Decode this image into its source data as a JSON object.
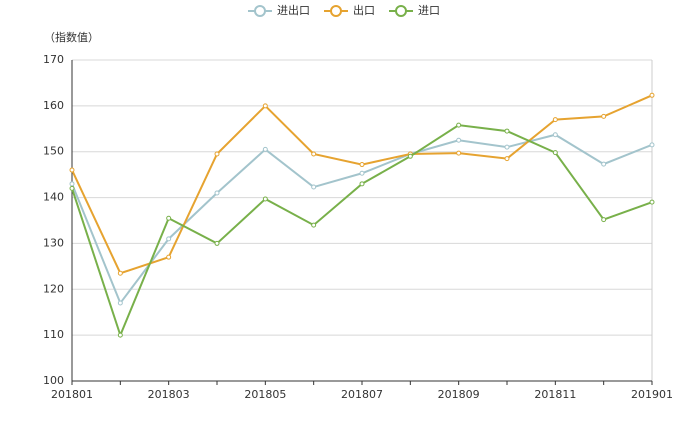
{
  "chart_data": {
    "type": "line",
    "y_axis_label": "（指数值）",
    "categories": [
      "201801",
      null,
      "201803",
      null,
      "201805",
      null,
      "201807",
      null,
      "201809",
      null,
      "201811",
      null,
      "201901"
    ],
    "series": [
      {
        "name": "进出口",
        "color": "#a3c4cc",
        "values": [
          143,
          117,
          131,
          141,
          150.5,
          142.3,
          145.3,
          149.5,
          152.5,
          151,
          153.7,
          147.3,
          151.5
        ]
      },
      {
        "name": "出口",
        "color": "#e6a330",
        "values": [
          146,
          123.5,
          127,
          149.5,
          160,
          149.5,
          147.2,
          149.5,
          149.7,
          148.5,
          157,
          157.7,
          162.3
        ]
      },
      {
        "name": "进口",
        "color": "#78b04a",
        "values": [
          142,
          110,
          135.5,
          130,
          139.7,
          134,
          143,
          149,
          155.8,
          154.5,
          149.8,
          135.2,
          139
        ]
      }
    ],
    "ylim": [
      100,
      170
    ],
    "yticks": [
      100,
      110,
      120,
      130,
      140,
      150,
      160,
      170
    ],
    "grid": true
  }
}
